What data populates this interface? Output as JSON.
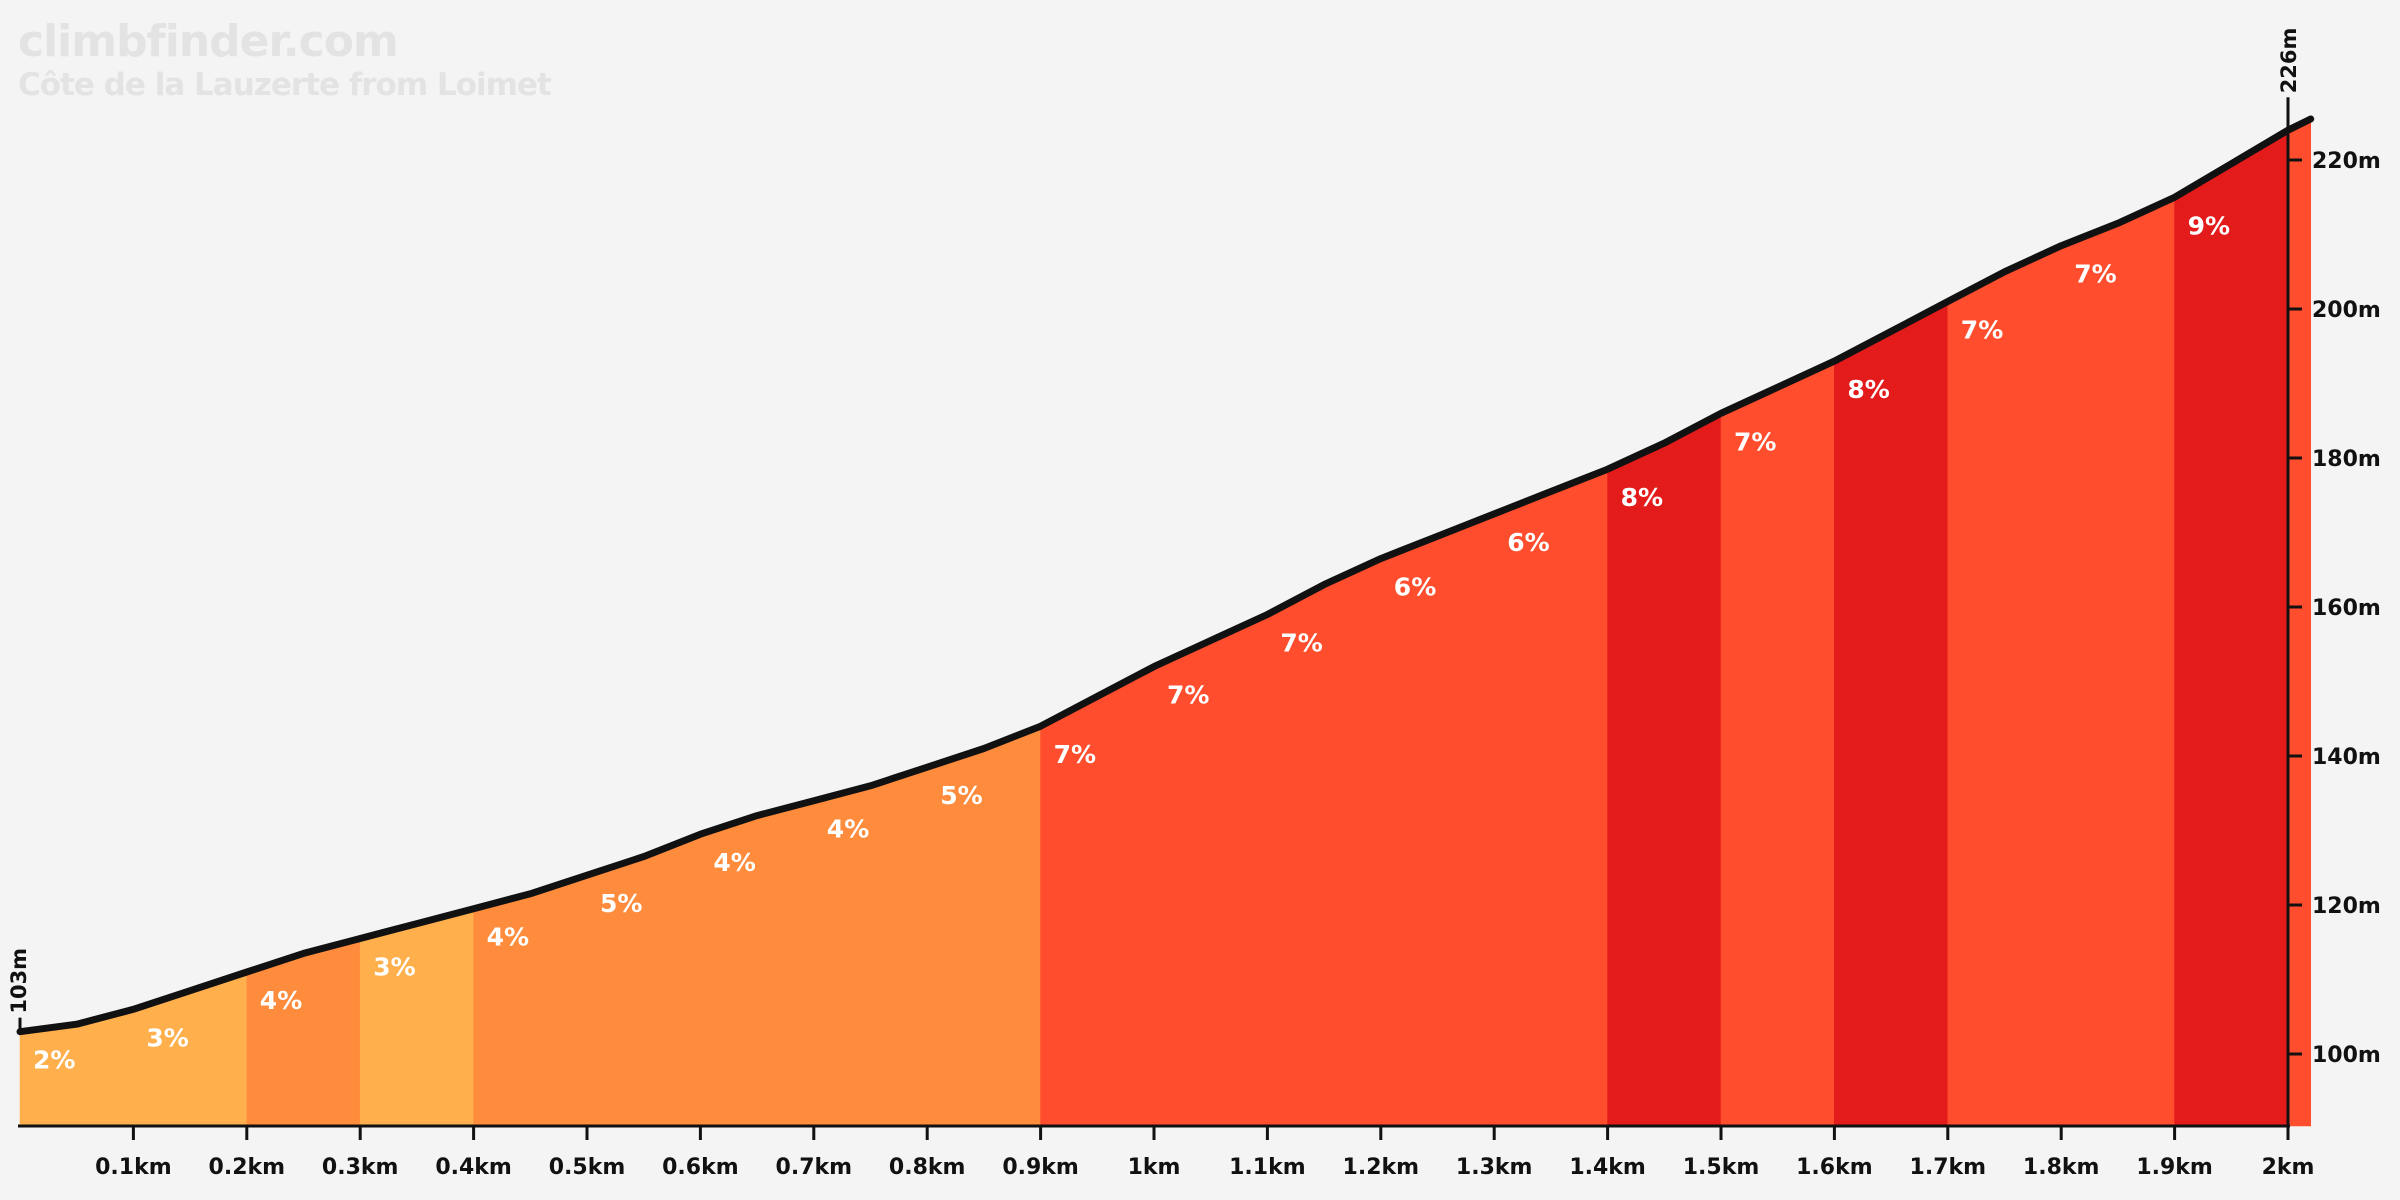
{
  "header": {
    "brand": "climbfinder.com",
    "climb_name": "Côte de la Lauzerte from Loimet"
  },
  "colors": {
    "background": "#f4f4f4",
    "profile_line": "#111111",
    "axis": "#111111",
    "gradient_scale": {
      "2": "#ffb04d",
      "3": "#ffb04d",
      "4": "#ff8c3c",
      "5": "#ff8c3c",
      "6": "#ff4d2d",
      "7": "#ff4d2d",
      "8": "#e31b1b",
      "9": "#e31b1b"
    }
  },
  "chart_data": {
    "type": "area",
    "title": "",
    "xlabel": "",
    "ylabel": "",
    "xlim": [
      0,
      2.02
    ],
    "ylim": [
      90,
      228
    ],
    "grid": false,
    "start_elevation": 103,
    "end_elevation": 226,
    "start_label": "103m",
    "end_label": "226m",
    "x_ticks": [
      {
        "value": 0.1,
        "label": "0.1km"
      },
      {
        "value": 0.2,
        "label": "0.2km"
      },
      {
        "value": 0.3,
        "label": "0.3km"
      },
      {
        "value": 0.4,
        "label": "0.4km"
      },
      {
        "value": 0.5,
        "label": "0.5km"
      },
      {
        "value": 0.6,
        "label": "0.6km"
      },
      {
        "value": 0.7,
        "label": "0.7km"
      },
      {
        "value": 0.8,
        "label": "0.8km"
      },
      {
        "value": 0.9,
        "label": "0.9km"
      },
      {
        "value": 1.0,
        "label": "1km"
      },
      {
        "value": 1.1,
        "label": "1.1km"
      },
      {
        "value": 1.2,
        "label": "1.2km"
      },
      {
        "value": 1.3,
        "label": "1.3km"
      },
      {
        "value": 1.4,
        "label": "1.4km"
      },
      {
        "value": 1.5,
        "label": "1.5km"
      },
      {
        "value": 1.6,
        "label": "1.6km"
      },
      {
        "value": 1.7,
        "label": "1.7km"
      },
      {
        "value": 1.8,
        "label": "1.8km"
      },
      {
        "value": 1.9,
        "label": "1.9km"
      },
      {
        "value": 2.0,
        "label": "2km"
      }
    ],
    "y_ticks": [
      {
        "value": 100,
        "label": "100m"
      },
      {
        "value": 120,
        "label": "120m"
      },
      {
        "value": 140,
        "label": "140m"
      },
      {
        "value": 160,
        "label": "160m"
      },
      {
        "value": 180,
        "label": "180m"
      },
      {
        "value": 200,
        "label": "200m"
      },
      {
        "value": 220,
        "label": "220m"
      }
    ],
    "segments": [
      {
        "start": 0.0,
        "end": 0.1,
        "gradient": 2,
        "label": "2%"
      },
      {
        "start": 0.1,
        "end": 0.2,
        "gradient": 3,
        "label": "3%"
      },
      {
        "start": 0.2,
        "end": 0.3,
        "gradient": 4,
        "label": "4%"
      },
      {
        "start": 0.3,
        "end": 0.4,
        "gradient": 3,
        "label": "3%"
      },
      {
        "start": 0.4,
        "end": 0.5,
        "gradient": 4,
        "label": "4%"
      },
      {
        "start": 0.5,
        "end": 0.6,
        "gradient": 5,
        "label": "5%"
      },
      {
        "start": 0.6,
        "end": 0.7,
        "gradient": 4,
        "label": "4%"
      },
      {
        "start": 0.7,
        "end": 0.8,
        "gradient": 4,
        "label": "4%"
      },
      {
        "start": 0.8,
        "end": 0.9,
        "gradient": 5,
        "label": "5%"
      },
      {
        "start": 0.9,
        "end": 1.0,
        "gradient": 7,
        "label": "7%"
      },
      {
        "start": 1.0,
        "end": 1.1,
        "gradient": 7,
        "label": "7%"
      },
      {
        "start": 1.1,
        "end": 1.2,
        "gradient": 7,
        "label": "7%"
      },
      {
        "start": 1.2,
        "end": 1.3,
        "gradient": 6,
        "label": "6%"
      },
      {
        "start": 1.3,
        "end": 1.4,
        "gradient": 6,
        "label": "6%"
      },
      {
        "start": 1.4,
        "end": 1.5,
        "gradient": 8,
        "label": "8%"
      },
      {
        "start": 1.5,
        "end": 1.6,
        "gradient": 7,
        "label": "7%"
      },
      {
        "start": 1.6,
        "end": 1.7,
        "gradient": 8,
        "label": "8%"
      },
      {
        "start": 1.7,
        "end": 1.8,
        "gradient": 7,
        "label": "7%"
      },
      {
        "start": 1.8,
        "end": 1.9,
        "gradient": 7,
        "label": "7%"
      },
      {
        "start": 1.9,
        "end": 2.0,
        "gradient": 9,
        "label": "9%"
      },
      {
        "start": 2.0,
        "end": 2.02,
        "gradient": 7,
        "label": ""
      }
    ],
    "profile": [
      [
        0.0,
        103
      ],
      [
        0.05,
        104
      ],
      [
        0.1,
        106
      ],
      [
        0.15,
        108.5
      ],
      [
        0.2,
        111
      ],
      [
        0.25,
        113.5
      ],
      [
        0.3,
        115.5
      ],
      [
        0.35,
        117.5
      ],
      [
        0.4,
        119.5
      ],
      [
        0.45,
        121.5
      ],
      [
        0.5,
        124
      ],
      [
        0.55,
        126.5
      ],
      [
        0.6,
        129.5
      ],
      [
        0.65,
        132
      ],
      [
        0.7,
        134
      ],
      [
        0.75,
        136
      ],
      [
        0.8,
        138.5
      ],
      [
        0.85,
        141
      ],
      [
        0.9,
        144
      ],
      [
        0.95,
        148
      ],
      [
        1.0,
        152
      ],
      [
        1.05,
        155.5
      ],
      [
        1.1,
        159
      ],
      [
        1.15,
        163
      ],
      [
        1.2,
        166.5
      ],
      [
        1.25,
        169.5
      ],
      [
        1.3,
        172.5
      ],
      [
        1.35,
        175.5
      ],
      [
        1.4,
        178.5
      ],
      [
        1.45,
        182
      ],
      [
        1.5,
        186
      ],
      [
        1.55,
        189.5
      ],
      [
        1.6,
        193
      ],
      [
        1.65,
        197
      ],
      [
        1.7,
        201
      ],
      [
        1.75,
        205
      ],
      [
        1.8,
        208.5
      ],
      [
        1.85,
        211.5
      ],
      [
        1.9,
        215
      ],
      [
        1.95,
        219.5
      ],
      [
        2.0,
        224
      ],
      [
        2.02,
        225.5
      ]
    ]
  }
}
